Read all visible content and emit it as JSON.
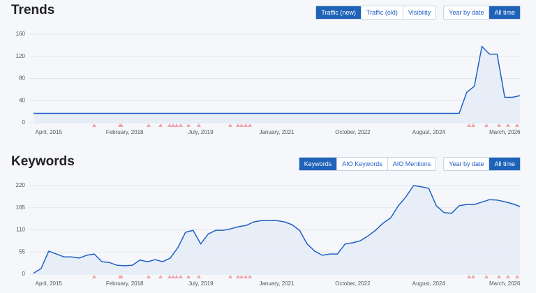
{
  "chart_data": [
    {
      "type": "line",
      "title": "Trends",
      "categories": [
        null,
        null,
        "April, 2015",
        null,
        null,
        null,
        null,
        null,
        null,
        null,
        null,
        null,
        "February, 2018",
        null,
        null,
        null,
        null,
        null,
        null,
        null,
        null,
        null,
        "July, 2019",
        null,
        null,
        null,
        null,
        null,
        null,
        null,
        null,
        null,
        "January, 2021",
        null,
        null,
        null,
        null,
        null,
        null,
        null,
        null,
        null,
        "October, 2022",
        null,
        null,
        null,
        null,
        null,
        null,
        null,
        null,
        null,
        "August, 2024",
        null,
        null,
        null,
        null,
        null,
        null,
        null,
        null,
        null,
        "March, 2026",
        null,
        null
      ],
      "values": [
        17,
        17,
        17,
        17,
        17,
        17,
        17,
        17,
        17,
        17,
        17,
        17,
        17,
        17,
        17,
        17,
        17,
        17,
        17,
        17,
        17,
        17,
        17,
        17,
        17,
        17,
        17,
        17,
        17,
        17,
        17,
        17,
        17,
        17,
        17,
        17,
        17,
        17,
        17,
        17,
        17,
        17,
        17,
        17,
        17,
        17,
        17,
        17,
        17,
        17,
        17,
        17,
        17,
        17,
        17,
        17,
        17,
        55,
        66,
        138,
        124,
        124,
        46,
        46,
        49
      ],
      "color": "#1f5fc7",
      "ylim": [
        0,
        160
      ],
      "yticks": [
        0,
        40,
        80,
        120,
        160
      ],
      "grid": true
    },
    {
      "type": "line",
      "title": "Keywords",
      "categories": [
        null,
        null,
        "April, 2015",
        null,
        null,
        null,
        null,
        null,
        null,
        null,
        null,
        null,
        "February, 2018",
        null,
        null,
        null,
        null,
        null,
        null,
        null,
        null,
        null,
        "July, 2019",
        null,
        null,
        null,
        null,
        null,
        null,
        null,
        null,
        null,
        "January, 2021",
        null,
        null,
        null,
        null,
        null,
        null,
        null,
        null,
        null,
        "October, 2022",
        null,
        null,
        null,
        null,
        null,
        null,
        null,
        null,
        null,
        "August, 2024",
        null,
        null,
        null,
        null,
        null,
        null,
        null,
        null,
        null,
        "March, 2026",
        null,
        null
      ],
      "values": [
        2,
        14,
        57,
        50,
        43,
        43,
        40,
        47,
        50,
        31,
        29,
        22,
        21,
        22,
        35,
        31,
        36,
        31,
        40,
        66,
        104,
        109,
        75,
        100,
        109,
        109,
        113,
        118,
        121,
        130,
        133,
        133,
        133,
        130,
        123,
        109,
        75,
        57,
        47,
        50,
        50,
        75,
        78,
        83,
        95,
        109,
        127,
        140,
        170,
        192,
        220,
        217,
        213,
        170,
        153,
        151,
        170,
        173,
        173,
        179,
        185,
        184,
        180,
        175,
        168
      ],
      "color": "#1f5fc7",
      "ylim": [
        0,
        220
      ],
      "yticks": [
        0,
        55,
        110,
        165,
        220
      ],
      "grid": true
    }
  ],
  "controls": [
    {
      "metric_tabs": [
        "Traffic (new)",
        "Traffic (old)",
        "Visibility"
      ],
      "metric_active": 0,
      "range_tabs": [
        "Year by date",
        "All time"
      ],
      "range_active": 1
    },
    {
      "metric_tabs": [
        "Keywords",
        "AIO Keywords",
        "AIO Mentions"
      ],
      "metric_active": 0,
      "range_tabs": [
        "Year by date",
        "All time"
      ],
      "range_active": 1
    }
  ]
}
